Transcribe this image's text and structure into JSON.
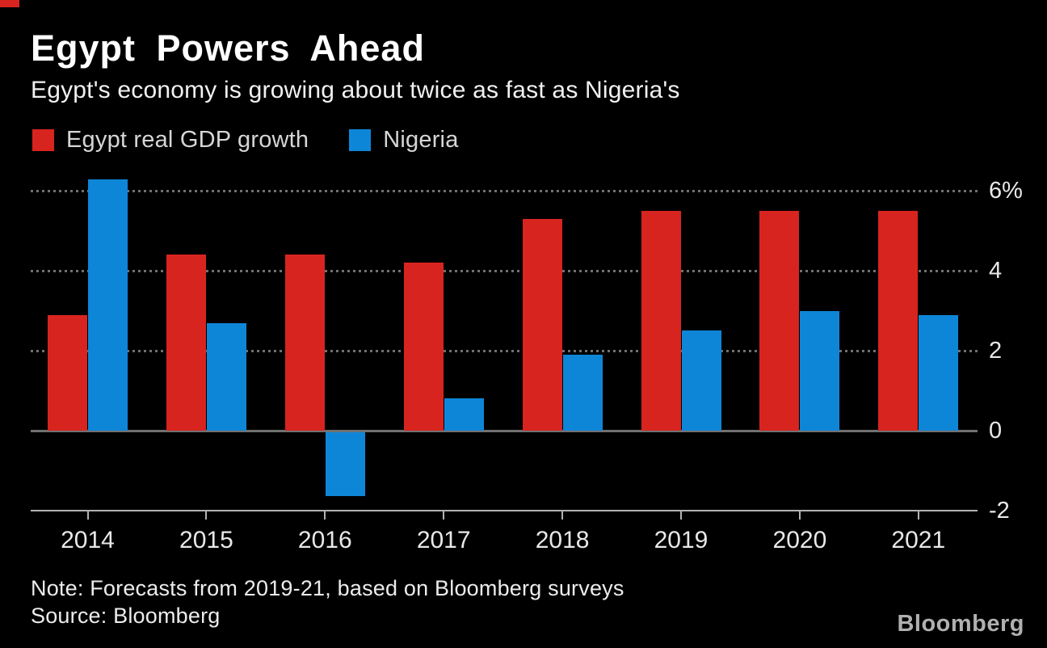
{
  "page": {
    "background": "#000000",
    "brand_tab_color": "#d8241f"
  },
  "chart_data": {
    "type": "bar",
    "title": "Egypt Powers Ahead",
    "subtitle": "Egypt's economy is growing about twice as fast as Nigeria's",
    "categories": [
      "2014",
      "2015",
      "2016",
      "2017",
      "2018",
      "2019",
      "2020",
      "2021"
    ],
    "series": [
      {
        "name": "Egypt real GDP growth",
        "color": "#d8241f",
        "values": [
          2.9,
          4.4,
          4.4,
          4.2,
          5.3,
          5.5,
          5.5,
          5.5
        ]
      },
      {
        "name": "Nigeria",
        "color": "#0e86d8",
        "values": [
          6.3,
          2.7,
          -1.6,
          0.8,
          1.9,
          2.5,
          3.0,
          2.9
        ]
      }
    ],
    "unit": "%",
    "ylim": [
      -2,
      6.5
    ],
    "yticks": [
      {
        "value": 6,
        "label": "6%"
      },
      {
        "value": 4,
        "label": "4"
      },
      {
        "value": 2,
        "label": "2"
      },
      {
        "value": 0,
        "label": "0"
      },
      {
        "value": -2,
        "label": "-2"
      }
    ],
    "grid": "horizontal-dotted",
    "legend_position": "top-left"
  },
  "footer": {
    "note": "Note: Forecasts from 2019-21, based on Bloomberg surveys",
    "source": "Source: Bloomberg",
    "logo": "Bloomberg"
  }
}
